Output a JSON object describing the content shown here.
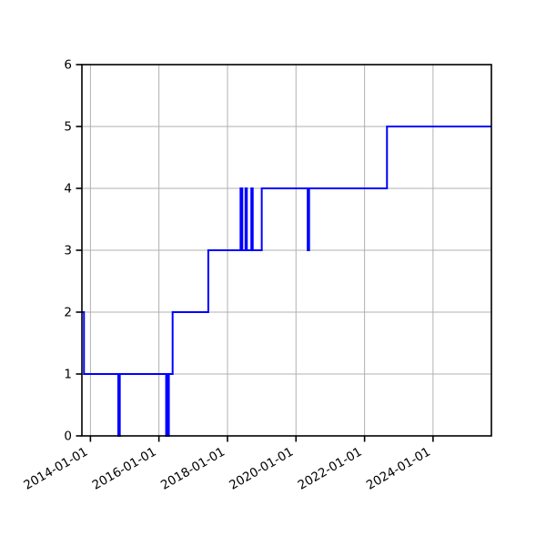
{
  "figure": {
    "background": "#ffffff"
  },
  "chart_data": {
    "type": "line",
    "drawstyle": "steps-post",
    "title": "",
    "xlabel": "",
    "ylabel": "",
    "legend": null,
    "grid": true,
    "grid_color": "#b0b0b0",
    "line_color": "#0000ff",
    "axis_color": "#000000",
    "xlim": [
      "2013-10-02",
      "2025-09-14"
    ],
    "ylim": [
      0,
      6
    ],
    "x_tick_labels": [
      "2014-01-01",
      "2016-01-01",
      "2018-01-01",
      "2020-01-01",
      "2022-01-01",
      "2024-01-01"
    ],
    "y_tick_labels": [
      "0",
      "1",
      "2",
      "3",
      "4",
      "5",
      "6"
    ],
    "y_ticks": [
      0,
      1,
      2,
      3,
      4,
      5,
      6
    ],
    "points": [
      [
        "2013-10-02",
        2
      ],
      [
        "2013-10-24",
        1
      ],
      [
        "2014-10-25",
        0
      ],
      [
        "2014-11-10",
        1
      ],
      [
        "2016-03-18",
        0
      ],
      [
        "2016-03-30",
        1
      ],
      [
        "2016-04-03",
        0
      ],
      [
        "2016-04-16",
        1
      ],
      [
        "2016-05-26",
        2
      ],
      [
        "2017-06-10",
        3
      ],
      [
        "2018-05-20",
        4
      ],
      [
        "2018-06-08",
        3
      ],
      [
        "2018-07-12",
        4
      ],
      [
        "2018-07-26",
        3
      ],
      [
        "2018-09-12",
        4
      ],
      [
        "2018-09-27",
        3
      ],
      [
        "2019-01-01",
        4
      ],
      [
        "2020-05-05",
        3
      ],
      [
        "2020-05-20",
        4
      ],
      [
        "2022-08-28",
        5
      ],
      [
        "2025-09-14",
        5
      ]
    ]
  }
}
